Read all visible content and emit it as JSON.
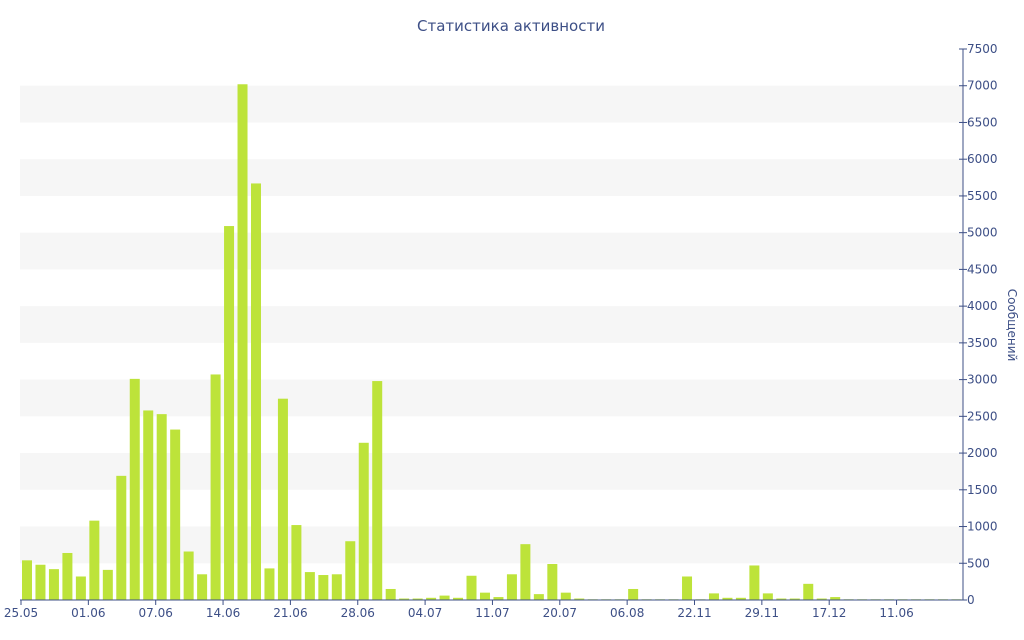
{
  "chart_data": {
    "type": "bar",
    "title": "Статистика активности",
    "xlabel": "",
    "ylabel": "Сообщений",
    "ylim": [
      0,
      7500
    ],
    "y_ticks": [
      0,
      500,
      1000,
      1500,
      2000,
      2500,
      3000,
      3500,
      4000,
      4500,
      5000,
      5500,
      6000,
      6500,
      7000,
      7500
    ],
    "grid": "alternating horizontal bands",
    "y_axis_position": "right",
    "bar_color": "#bde33a",
    "x_tick_labels": [
      {
        "label": "25.05",
        "bar_index": 0
      },
      {
        "label": "01.06",
        "bar_index": 5
      },
      {
        "label": "07.06",
        "bar_index": 10
      },
      {
        "label": "14.06",
        "bar_index": 15
      },
      {
        "label": "21.06",
        "bar_index": 20
      },
      {
        "label": "28.06",
        "bar_index": 25
      },
      {
        "label": "04.07",
        "bar_index": 30
      },
      {
        "label": "11.07",
        "bar_index": 35
      },
      {
        "label": "20.07",
        "bar_index": 40
      },
      {
        "label": "06.08",
        "bar_index": 45
      },
      {
        "label": "22.11",
        "bar_index": 50
      },
      {
        "label": "29.11",
        "bar_index": 55
      },
      {
        "label": "17.12",
        "bar_index": 60
      },
      {
        "label": "11.06",
        "bar_index": 65
      }
    ],
    "values": [
      540,
      480,
      420,
      640,
      320,
      1080,
      410,
      1690,
      3010,
      2580,
      2530,
      2320,
      660,
      350,
      3070,
      5090,
      7020,
      5670,
      430,
      2740,
      1020,
      380,
      340,
      350,
      800,
      2140,
      2980,
      150,
      20,
      20,
      30,
      60,
      30,
      330,
      100,
      40,
      350,
      760,
      80,
      490,
      100,
      20,
      10,
      10,
      10,
      150,
      10,
      10,
      10,
      320,
      10,
      90,
      30,
      30,
      470,
      90,
      20,
      20,
      220,
      20,
      40,
      10,
      10,
      10,
      10,
      10,
      10,
      10,
      10,
      10
    ]
  }
}
